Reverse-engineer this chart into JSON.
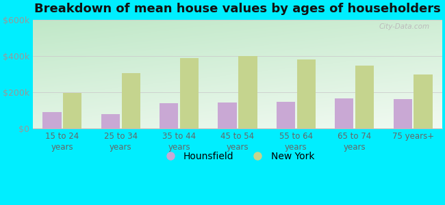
{
  "title": "Breakdown of mean house values by ages of householders",
  "categories": [
    "15 to 24\nyears",
    "25 to 34\nyears",
    "35 to 44\nyears",
    "45 to 54\nyears",
    "55 to 64\nyears",
    "65 to 74\nyears",
    "75 years+"
  ],
  "hounsfield": [
    90000,
    80000,
    140000,
    145000,
    148000,
    168000,
    163000
  ],
  "new_york": [
    198000,
    305000,
    390000,
    400000,
    382000,
    348000,
    298000
  ],
  "hounsfield_color": "#c9a8d4",
  "new_york_color": "#c5d48e",
  "grad_top_left": "#b8dfc0",
  "grad_bottom_right": "#f0faf0",
  "bg_outer": "#00eeff",
  "ylim": [
    0,
    600000
  ],
  "yticks": [
    0,
    200000,
    400000,
    600000
  ],
  "ytick_labels": [
    "$0",
    "$200k",
    "$400k",
    "$600k"
  ],
  "legend_hounsfield": "Hounsfield",
  "legend_new_york": "New York",
  "watermark": "City-Data.com",
  "title_fontsize": 13,
  "tick_fontsize": 9,
  "bar_width": 0.32
}
